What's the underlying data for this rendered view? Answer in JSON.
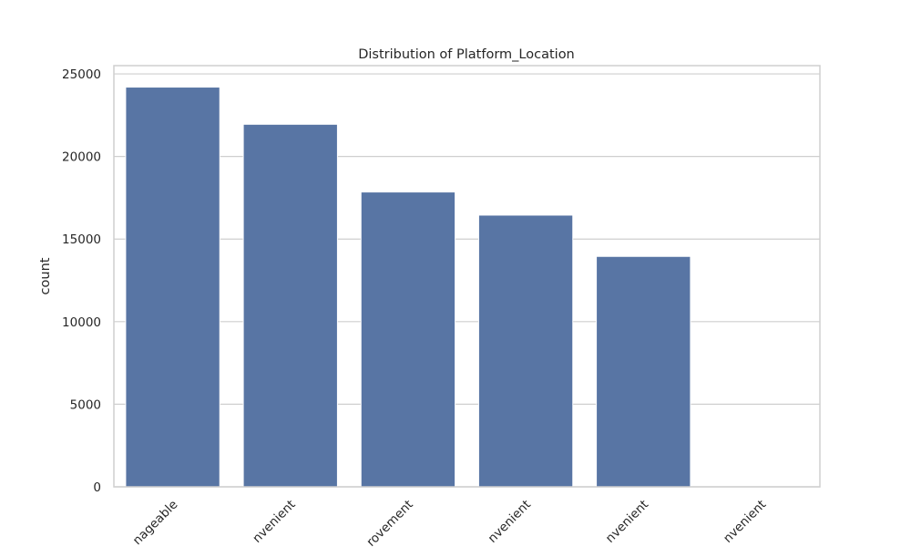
{
  "chart_data": {
    "type": "bar",
    "title": "Distribution of Platform_Location",
    "xlabel": "",
    "ylabel": "count",
    "categories": [
      "nageable",
      "nvenient",
      "rovement",
      "nvenient",
      "nvenient",
      "nvenient"
    ],
    "values": [
      24200,
      21950,
      17850,
      16450,
      13950,
      0
    ],
    "yticks": [
      0,
      5000,
      10000,
      15000,
      20000,
      25000
    ],
    "ylim": [
      0,
      25500
    ],
    "grid": true,
    "legend": "none",
    "colors": {
      "bar": "#5875a4",
      "grid": "#cfcfcf",
      "text": "#262626"
    }
  }
}
